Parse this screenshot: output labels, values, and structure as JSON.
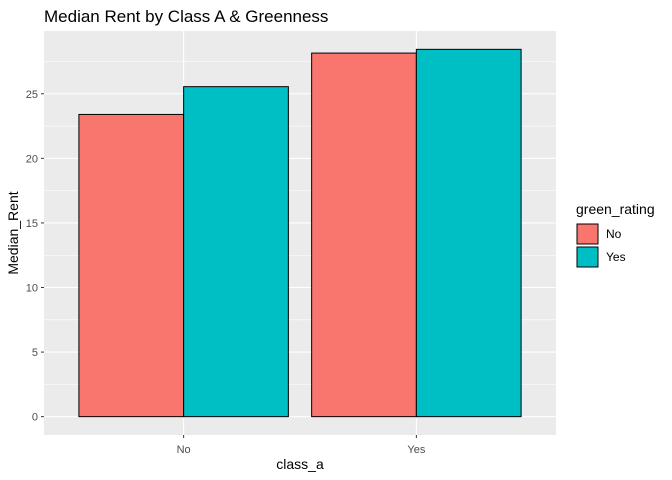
{
  "chart_data": {
    "type": "bar",
    "title": "Median Rent by Class A & Greenness",
    "xlabel": "class_a",
    "ylabel": "Median_Rent",
    "categories": [
      "No",
      "Yes"
    ],
    "series": [
      {
        "name": "No",
        "values": [
          23.4,
          28.15
        ],
        "color": "#F8766D"
      },
      {
        "name": "Yes",
        "values": [
          25.55,
          28.44
        ],
        "color": "#00BFC4"
      }
    ],
    "yticks": [
      0,
      5,
      10,
      15,
      20,
      25
    ],
    "ylim": [
      -1.42,
      29.86
    ],
    "grid": true,
    "panel_background": "#EBEBEB",
    "bar_outline": "#000000",
    "legend": {
      "title": "green_rating",
      "placement": "right"
    }
  }
}
